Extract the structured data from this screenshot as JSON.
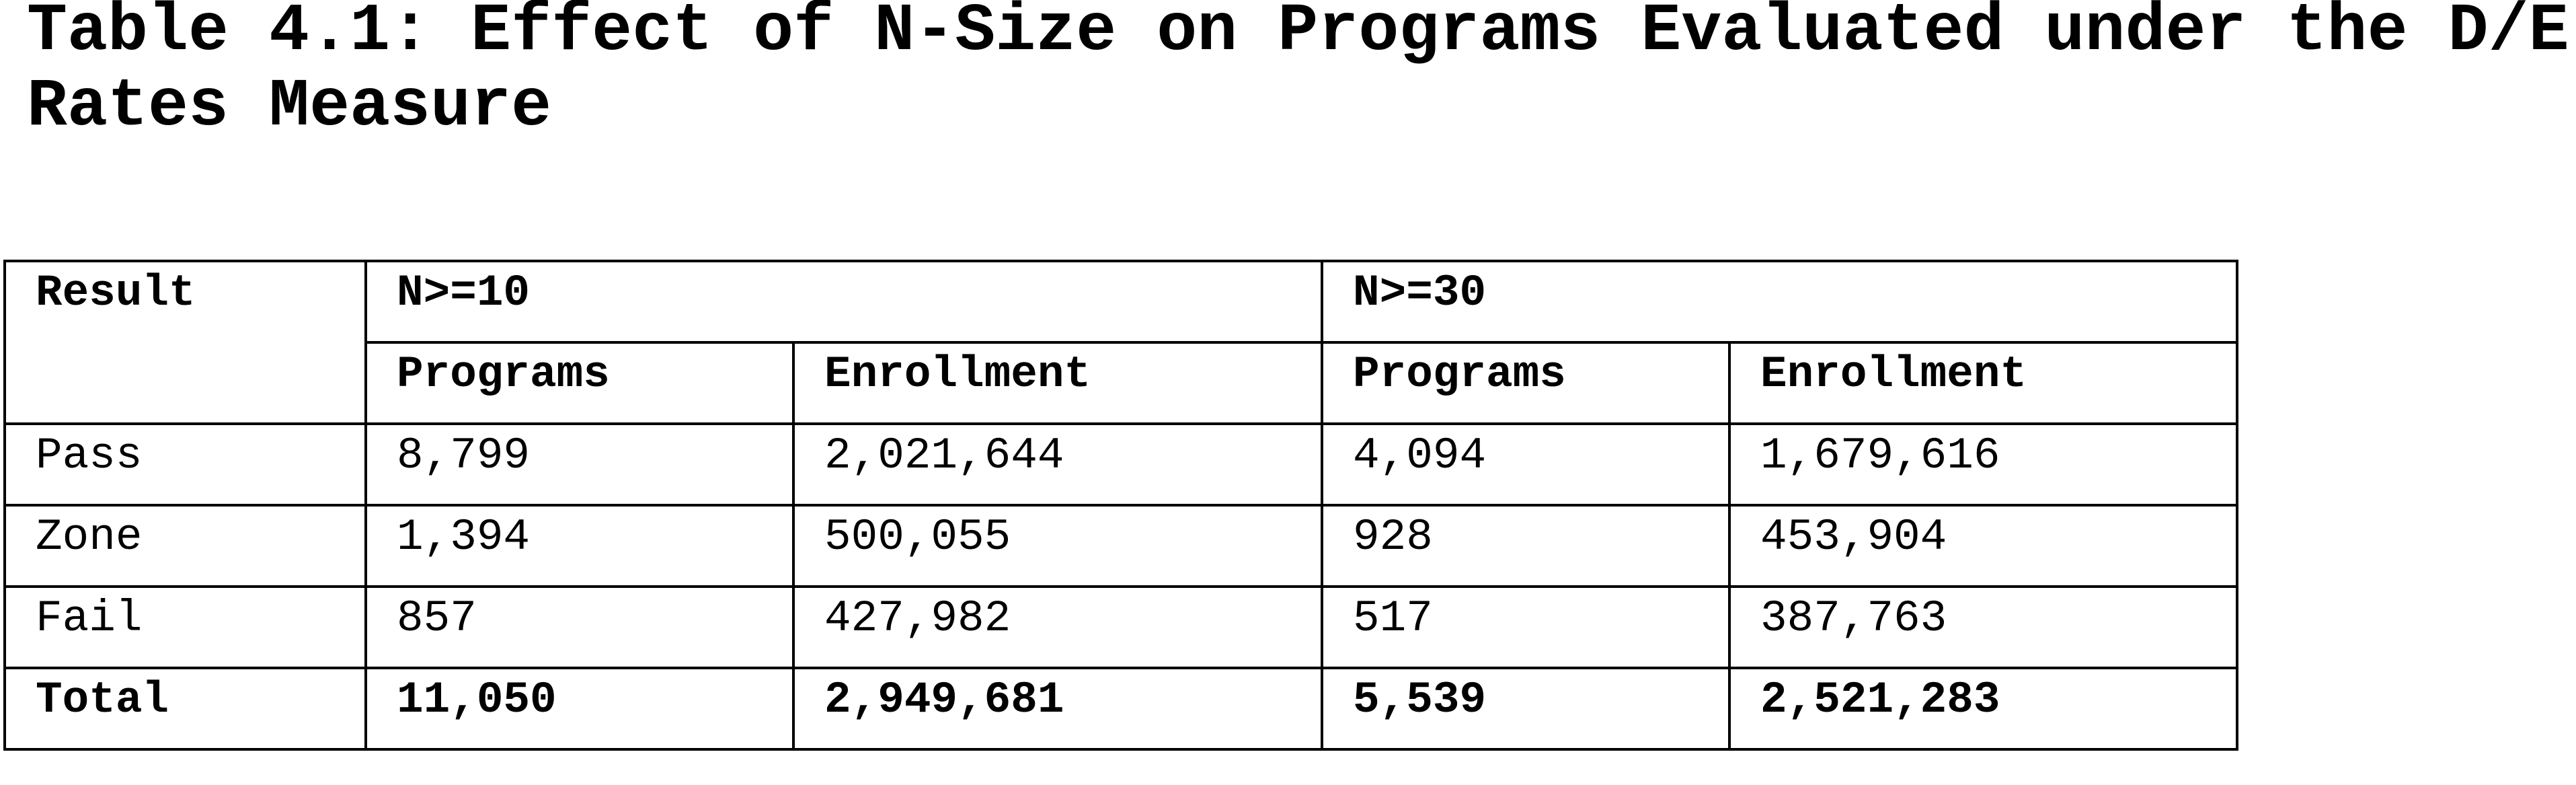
{
  "title": "Table 4.1: Effect of N-Size on Programs Evaluated under the D/E Rates Measure",
  "table": {
    "header": {
      "first": "Result",
      "groups": [
        {
          "label": "N>=10",
          "columns": [
            "Programs",
            "Enrollment"
          ]
        },
        {
          "label": "N>=30",
          "columns": [
            "Programs",
            "Enrollment"
          ]
        }
      ]
    },
    "rows": [
      [
        "Pass",
        "8,799",
        "2,021,644",
        "4,094",
        "1,679,616"
      ],
      [
        "Zone",
        "1,394",
        "500,055",
        "928",
        "453,904"
      ],
      [
        "Fail",
        "857",
        "427,982",
        "517",
        "387,763"
      ]
    ],
    "total": [
      "Total",
      "11,050",
      "2,949,681",
      "5,539",
      "2,521,283"
    ]
  }
}
